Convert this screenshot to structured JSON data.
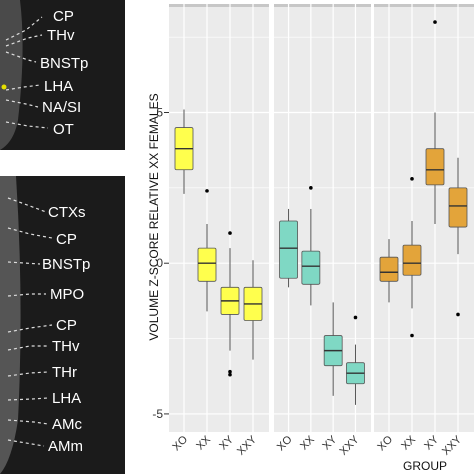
{
  "colors": {
    "XX": "#ffff4d",
    "XY": "#7fd8c4",
    "XXY": "#e3a43a",
    "panel_bg": "#ebebeb",
    "grid": "#ffffff",
    "outlier": "#000000"
  },
  "left_panel": {
    "top_section": {
      "labels": [
        "CP",
        "THv",
        "BNSTp",
        "LHA",
        "NA/SI",
        "OT"
      ]
    },
    "bottom_section": {
      "labels": [
        "CTXs",
        "CP",
        "BNSTp",
        "MPO",
        "CP",
        "THv",
        "THr",
        "LHA",
        "AMc",
        "AMm"
      ]
    }
  },
  "chart_data": {
    "type": "box",
    "ylabel": "VOLUME Z-SCORE RELATIVE XX FEMALES",
    "xlabel": "GROUP",
    "ylim": [
      -5.6,
      8.6
    ],
    "yticks": [
      -5,
      0,
      5
    ],
    "facets": [
      {
        "fill": "#ffff4d",
        "categories": [
          "XO",
          "XX",
          "XY",
          "XXY"
        ],
        "boxes": [
          {
            "category": "XO",
            "min": 2.3,
            "q1": 3.1,
            "median": 3.8,
            "q3": 4.5,
            "max": 5.1,
            "outliers": []
          },
          {
            "category": "XX",
            "min": -1.6,
            "q1": -0.6,
            "median": 0.0,
            "q3": 0.5,
            "max": 1.3,
            "outliers": [
              2.4
            ]
          },
          {
            "category": "XY",
            "min": -2.9,
            "q1": -1.7,
            "median": -1.25,
            "q3": -0.8,
            "max": 0.5,
            "outliers": [
              1.0,
              -3.6,
              -3.7
            ]
          },
          {
            "category": "XXY",
            "min": -3.2,
            "q1": -1.9,
            "median": -1.35,
            "q3": -0.8,
            "max": 0.1,
            "outliers": []
          }
        ]
      },
      {
        "fill": "#7fd8c4",
        "categories": [
          "XO",
          "XX",
          "XY",
          "XXY"
        ],
        "boxes": [
          {
            "category": "XO",
            "min": -0.8,
            "q1": -0.5,
            "median": 0.5,
            "q3": 1.4,
            "max": 1.8,
            "outliers": []
          },
          {
            "category": "XX",
            "min": -1.4,
            "q1": -0.7,
            "median": -0.1,
            "q3": 0.4,
            "max": 1.8,
            "outliers": [
              2.5
            ]
          },
          {
            "category": "XY",
            "min": -4.4,
            "q1": -3.4,
            "median": -2.9,
            "q3": -2.4,
            "max": -1.3,
            "outliers": []
          },
          {
            "category": "XXY",
            "min": -4.7,
            "q1": -4.0,
            "median": -3.65,
            "q3": -3.3,
            "max": -2.7,
            "outliers": [
              -1.8
            ]
          }
        ]
      },
      {
        "fill": "#e3a43a",
        "categories": [
          "XO",
          "XX",
          "XY",
          "XXY"
        ],
        "boxes": [
          {
            "category": "XO",
            "min": -1.3,
            "q1": -0.6,
            "median": -0.3,
            "q3": 0.2,
            "max": 0.8,
            "outliers": []
          },
          {
            "category": "XX",
            "min": -1.5,
            "q1": -0.4,
            "median": 0.0,
            "q3": 0.6,
            "max": 1.4,
            "outliers": [
              2.8,
              -2.4
            ]
          },
          {
            "category": "XY",
            "min": 1.3,
            "q1": 2.6,
            "median": 3.1,
            "q3": 3.8,
            "max": 5.0,
            "outliers": [
              8.0
            ]
          },
          {
            "category": "XXY",
            "min": 0.3,
            "q1": 1.2,
            "median": 1.9,
            "q3": 2.5,
            "max": 3.5,
            "outliers": [
              -1.7
            ]
          }
        ]
      }
    ]
  }
}
